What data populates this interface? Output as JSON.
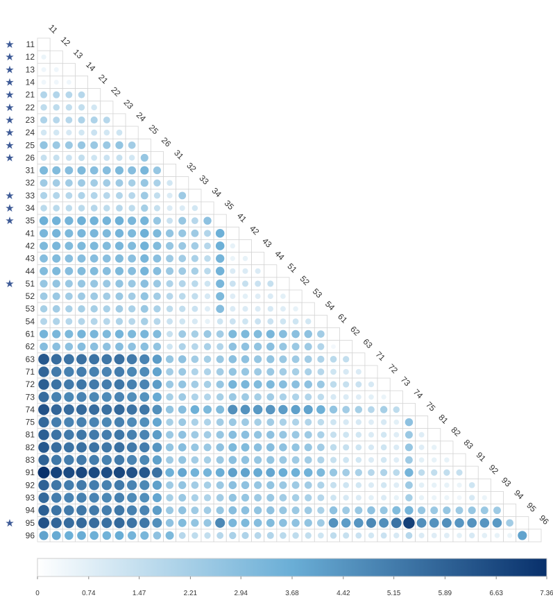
{
  "chart_data": {
    "type": "heatmap",
    "style": "lower-triangle correlation circles, circle size and color encode value",
    "labels": [
      "11",
      "12",
      "13",
      "14",
      "21",
      "22",
      "23",
      "24",
      "25",
      "26",
      "31",
      "32",
      "33",
      "34",
      "35",
      "41",
      "42",
      "43",
      "44",
      "51",
      "52",
      "53",
      "54",
      "61",
      "62",
      "63",
      "71",
      "72",
      "73",
      "74",
      "75",
      "81",
      "82",
      "83",
      "91",
      "92",
      "93",
      "94",
      "95",
      "96"
    ],
    "starred": [
      "11",
      "12",
      "13",
      "14",
      "21",
      "22",
      "23",
      "24",
      "25",
      "26",
      "33",
      "34",
      "35",
      "51",
      "95"
    ],
    "star_icon": "star-icon",
    "colorscale": {
      "min": 0,
      "max": 7.36,
      "low_color": "#ffffff",
      "mid_color": "#6aaed6",
      "high_color": "#08306b",
      "ticks": [
        "0",
        "0.74",
        "1.47",
        "2.21",
        "2.94",
        "3.68",
        "4.42",
        "5.15",
        "5.89",
        "6.63",
        "7.36"
      ]
    },
    "rows": [
      [],
      [
        0.5
      ],
      [
        0.4,
        0.4
      ],
      [
        0.4,
        0.4,
        0.4
      ],
      [
        1.9,
        1.9,
        1.8,
        1.8
      ],
      [
        1.6,
        1.6,
        1.5,
        1.5,
        1.1
      ],
      [
        2.0,
        1.8,
        1.8,
        2.0,
        2.0,
        1.8
      ],
      [
        1.1,
        1.1,
        1.0,
        1.1,
        1.3,
        1.1,
        1.2
      ],
      [
        2.7,
        2.5,
        2.5,
        2.6,
        2.5,
        2.5,
        2.7,
        2.3
      ],
      [
        1.4,
        1.4,
        1.3,
        1.5,
        1.2,
        1.3,
        1.4,
        1.1,
        2.6
      ],
      [
        3.2,
        3.1,
        3.0,
        3.2,
        3.0,
        3.0,
        3.2,
        3.0,
        3.3,
        2.6
      ],
      [
        2.4,
        2.3,
        2.3,
        2.4,
        2.3,
        2.3,
        2.4,
        2.2,
        2.6,
        2.1,
        1.1
      ],
      [
        2.0,
        1.9,
        1.8,
        2.0,
        1.9,
        1.8,
        1.9,
        1.8,
        2.4,
        1.5,
        0.9,
        2.4
      ],
      [
        1.7,
        1.7,
        1.6,
        1.7,
        1.8,
        1.6,
        1.8,
        1.6,
        2.2,
        1.4,
        0.9,
        0.9,
        1.1
      ],
      [
        3.6,
        3.5,
        3.4,
        3.6,
        3.5,
        3.4,
        3.6,
        3.3,
        3.4,
        2.6,
        1.3,
        2.6,
        1.8,
        2.8
      ],
      [
        3.3,
        3.4,
        3.2,
        3.3,
        3.3,
        3.2,
        3.4,
        3.2,
        3.6,
        3.2,
        2.7,
        2.6,
        2.4,
        1.9,
        3.6
      ],
      [
        3.2,
        3.3,
        3.1,
        3.2,
        3.2,
        3.1,
        3.3,
        3.1,
        3.5,
        3.1,
        2.6,
        2.5,
        2.3,
        1.8,
        3.6,
        0.6
      ],
      [
        3.0,
        3.1,
        2.9,
        3.0,
        3.0,
        2.9,
        3.1,
        2.9,
        3.3,
        2.9,
        2.4,
        2.3,
        2.1,
        1.6,
        3.4,
        0.5,
        0.6
      ],
      [
        3.1,
        3.2,
        3.0,
        3.1,
        3.1,
        3.0,
        3.2,
        3.0,
        3.4,
        3.0,
        2.5,
        2.4,
        2.2,
        1.7,
        3.5,
        0.9,
        0.9,
        0.9
      ],
      [
        2.6,
        2.7,
        2.5,
        2.6,
        2.6,
        2.5,
        2.7,
        2.5,
        2.9,
        2.5,
        2.0,
        1.9,
        1.7,
        1.2,
        3.3,
        1.3,
        1.4,
        1.3,
        1.4
      ],
      [
        2.4,
        2.5,
        2.3,
        2.4,
        2.4,
        2.3,
        2.5,
        2.3,
        2.7,
        2.3,
        1.8,
        1.7,
        1.5,
        1.0,
        3.2,
        0.8,
        0.7,
        0.8,
        0.9,
        0.7
      ],
      [
        2.2,
        2.3,
        2.1,
        2.2,
        2.2,
        2.1,
        2.3,
        2.1,
        2.5,
        2.1,
        1.6,
        1.5,
        1.3,
        0.8,
        3.0,
        0.9,
        0.9,
        0.9,
        1.0,
        0.8,
        0.6
      ],
      [
        1.9,
        2.0,
        1.8,
        1.9,
        1.9,
        1.8,
        2.0,
        1.8,
        2.2,
        1.8,
        1.3,
        1.2,
        1.0,
        0.6,
        1.2,
        1.3,
        1.2,
        1.3,
        1.3,
        1.2,
        1.2,
        1.1
      ],
      [
        3.4,
        3.3,
        3.2,
        3.4,
        3.3,
        3.2,
        3.4,
        3.2,
        3.3,
        3.1,
        1.4,
        2.4,
        2.2,
        2.5,
        2.3,
        3.2,
        3.2,
        3.1,
        3.3,
        3.0,
        2.9,
        2.8,
        2.3
      ],
      [
        3.0,
        2.9,
        2.8,
        3.0,
        2.9,
        2.8,
        3.0,
        2.8,
        2.9,
        2.7,
        1.2,
        2.0,
        1.8,
        2.1,
        1.9,
        2.8,
        2.8,
        2.7,
        2.9,
        2.6,
        2.5,
        2.4,
        1.9,
        0.3
      ],
      [
        6.2,
        5.6,
        5.4,
        5.5,
        5.4,
        5.3,
        5.5,
        5.2,
        4.9,
        4.2,
        2.6,
        2.8,
        2.3,
        2.2,
        2.5,
        2.9,
        2.8,
        2.6,
        2.7,
        2.5,
        2.4,
        2.3,
        2.0,
        1.7,
        1.5
      ],
      [
        5.8,
        5.2,
        5.0,
        5.1,
        5.0,
        4.9,
        5.1,
        4.8,
        4.7,
        4.0,
        2.3,
        2.5,
        2.0,
        2.0,
        2.3,
        2.7,
        2.6,
        2.4,
        2.5,
        2.3,
        2.2,
        2.1,
        1.8,
        1.2,
        1.0,
        0.9
      ],
      [
        6.0,
        5.4,
        5.2,
        5.3,
        5.2,
        5.1,
        5.3,
        5.0,
        4.9,
        4.2,
        2.5,
        2.7,
        2.3,
        2.2,
        2.6,
        3.4,
        3.3,
        3.1,
        3.2,
        3.0,
        2.9,
        2.8,
        2.5,
        1.6,
        1.4,
        1.3,
        1.0
      ],
      [
        5.6,
        5.0,
        4.8,
        4.9,
        4.8,
        4.7,
        4.9,
        4.6,
        4.5,
        3.8,
        2.2,
        2.4,
        2.0,
        1.9,
        2.2,
        2.5,
        2.4,
        2.2,
        2.3,
        2.1,
        2.0,
        1.9,
        1.6,
        1.0,
        0.9,
        0.8,
        0.7,
        0.5
      ],
      [
        6.4,
        5.8,
        5.6,
        5.7,
        5.6,
        5.5,
        5.7,
        5.4,
        5.3,
        4.6,
        2.7,
        3.0,
        3.6,
        3.2,
        3.1,
        4.6,
        4.5,
        4.3,
        4.4,
        4.2,
        4.1,
        4.0,
        3.6,
        2.7,
        2.3,
        2.2,
        1.8,
        2.2,
        1.6
      ],
      [
        5.7,
        5.1,
        4.9,
        5.0,
        4.9,
        4.8,
        5.0,
        4.7,
        4.6,
        3.9,
        2.2,
        2.5,
        2.1,
        2.0,
        2.3,
        2.5,
        2.4,
        2.2,
        2.3,
        2.1,
        2.0,
        1.9,
        1.6,
        1.2,
        1.0,
        1.0,
        0.8,
        1.0,
        0.7,
        2.8
      ],
      [
        6.0,
        5.4,
        5.2,
        5.3,
        5.2,
        5.1,
        5.3,
        5.0,
        4.9,
        4.2,
        2.5,
        2.8,
        2.4,
        2.3,
        2.6,
        3.0,
        2.9,
        2.7,
        2.8,
        2.6,
        2.5,
        2.4,
        2.1,
        1.4,
        1.2,
        1.1,
        0.9,
        1.1,
        0.8,
        2.5,
        0.8
      ],
      [
        6.2,
        5.6,
        5.4,
        5.5,
        5.4,
        5.3,
        5.5,
        5.2,
        5.1,
        4.4,
        2.7,
        3.0,
        2.6,
        2.5,
        2.8,
        3.2,
        3.1,
        2.9,
        3.0,
        2.8,
        2.7,
        2.6,
        2.3,
        1.6,
        1.4,
        1.2,
        1.0,
        1.2,
        0.9,
        2.6,
        0.8,
        0.6
      ],
      [
        5.9,
        5.3,
        5.1,
        5.2,
        5.1,
        5.0,
        5.2,
        4.9,
        4.8,
        4.1,
        2.4,
        2.7,
        2.3,
        2.2,
        2.5,
        2.9,
        2.8,
        2.6,
        2.7,
        2.5,
        2.4,
        2.3,
        2.0,
        1.4,
        1.2,
        1.1,
        0.9,
        1.1,
        0.8,
        2.4,
        0.7,
        0.6,
        0.6
      ],
      [
        7.36,
        6.8,
        6.6,
        6.7,
        6.6,
        6.5,
        6.7,
        6.4,
        6.2,
        5.5,
        3.6,
        3.9,
        3.5,
        3.4,
        3.7,
        4.1,
        4.0,
        3.8,
        3.9,
        3.7,
        3.6,
        3.5,
        3.2,
        2.6,
        2.3,
        2.1,
        1.8,
        2.0,
        1.7,
        3.4,
        1.6,
        1.5,
        1.5,
        1.4
      ],
      [
        5.9,
        5.3,
        5.1,
        5.2,
        5.1,
        5.0,
        5.2,
        4.9,
        4.8,
        4.1,
        2.4,
        2.7,
        2.3,
        2.2,
        2.5,
        2.9,
        2.8,
        2.6,
        2.7,
        2.5,
        2.4,
        2.3,
        2.0,
        1.4,
        1.2,
        1.1,
        0.9,
        1.1,
        0.8,
        2.4,
        0.7,
        0.6,
        0.6,
        0.5,
        1.2
      ],
      [
        5.7,
        5.1,
        4.9,
        5.0,
        4.9,
        4.8,
        5.0,
        4.7,
        4.6,
        3.9,
        2.2,
        2.5,
        2.1,
        2.0,
        2.3,
        2.7,
        2.6,
        2.4,
        2.5,
        2.3,
        2.2,
        2.1,
        1.8,
        1.2,
        1.0,
        0.9,
        0.7,
        0.9,
        0.6,
        2.2,
        0.6,
        0.5,
        0.5,
        0.4,
        1.0,
        0.5
      ],
      [
        6.0,
        5.4,
        5.2,
        5.3,
        5.2,
        5.1,
        5.3,
        5.0,
        4.9,
        4.2,
        2.5,
        2.8,
        2.4,
        2.3,
        2.6,
        3.0,
        2.9,
        2.7,
        2.8,
        2.6,
        2.5,
        2.4,
        2.1,
        2.8,
        2.4,
        2.5,
        2.8,
        2.6,
        3.1,
        3.4,
        2.6,
        2.5,
        2.6,
        2.4,
        2.6,
        2.5,
        2.4
      ],
      [
        6.4,
        5.8,
        5.6,
        5.7,
        5.6,
        5.5,
        5.7,
        5.4,
        5.3,
        4.6,
        2.8,
        3.1,
        2.7,
        2.6,
        4.8,
        3.3,
        3.2,
        3.0,
        3.1,
        2.9,
        2.8,
        2.7,
        2.4,
        4.5,
        4.2,
        4.4,
        4.8,
        4.6,
        5.4,
        6.9,
        4.6,
        4.5,
        4.6,
        4.4,
        4.5,
        4.4,
        4.3,
        2.3
      ],
      [
        4.0,
        3.8,
        3.6,
        3.7,
        3.6,
        3.5,
        3.7,
        3.4,
        3.3,
        2.8,
        3.2,
        1.8,
        1.6,
        1.5,
        1.8,
        2.1,
        2.0,
        1.8,
        1.9,
        1.7,
        1.6,
        1.5,
        1.2,
        1.6,
        1.4,
        1.3,
        1.1,
        1.3,
        1.0,
        1.8,
        0.9,
        0.8,
        0.8,
        0.7,
        1.0,
        0.7,
        0.6,
        0.5,
        4.0
      ]
    ]
  }
}
